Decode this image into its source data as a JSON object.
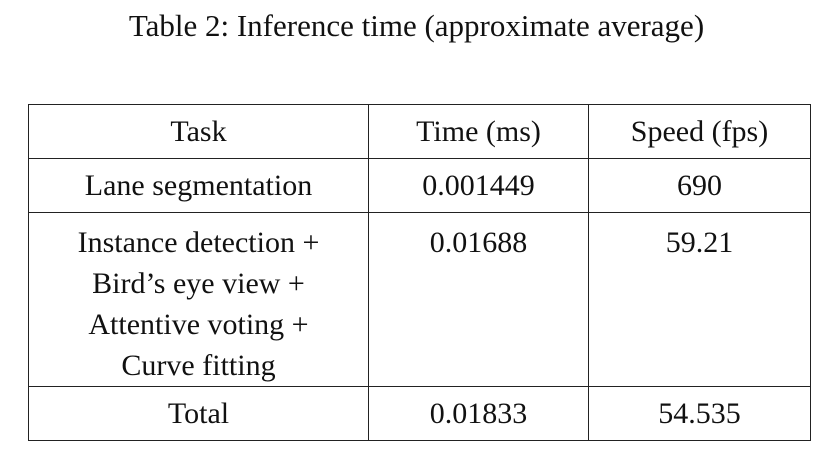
{
  "caption": "Table 2: Inference time (approximate average)",
  "table": {
    "headers": [
      "Task",
      "Time (ms)",
      "Speed (fps)"
    ],
    "rows": [
      {
        "task_lines": [
          "Lane segmentation"
        ],
        "time": "0.001449",
        "speed": "690"
      },
      {
        "task_lines": [
          "Instance detection +",
          "Bird’s eye view +",
          "Attentive voting +",
          "Curve fitting"
        ],
        "time": "0.01688",
        "speed": "59.21"
      },
      {
        "task_lines": [
          "Total"
        ],
        "time": "0.01833",
        "speed": "54.535"
      }
    ]
  }
}
